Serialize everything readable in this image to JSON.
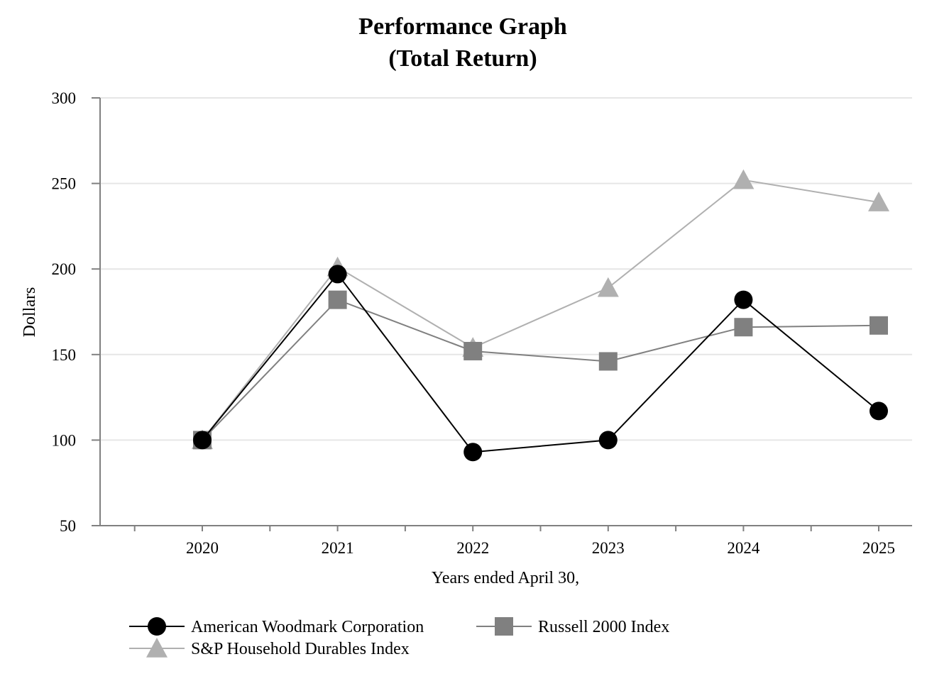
{
  "chart_data": {
    "type": "line",
    "title_line1": "Performance Graph",
    "title_line2": "(Total Return)",
    "xlabel": "Years ended April 30,",
    "ylabel": "Dollars",
    "categories": [
      "2020",
      "2021",
      "2022",
      "2023",
      "2024",
      "2025"
    ],
    "ylim": [
      50,
      300
    ],
    "yticks": [
      "50",
      "100",
      "150",
      "200",
      "250",
      "300"
    ],
    "grid": true,
    "legend_position": "bottom",
    "series": [
      {
        "name": "American Woodmark Corporation",
        "marker": "circle",
        "color": "#000000",
        "values": [
          100,
          197,
          93,
          100,
          182,
          117
        ]
      },
      {
        "name": "Russell 2000 Index",
        "marker": "square",
        "color": "#808080",
        "values": [
          100,
          182,
          152,
          146,
          166,
          167
        ]
      },
      {
        "name": "S&P Household Durables Index",
        "marker": "triangle",
        "color": "#b0b0b0",
        "values": [
          100,
          201,
          154,
          189,
          252,
          239
        ]
      }
    ]
  }
}
